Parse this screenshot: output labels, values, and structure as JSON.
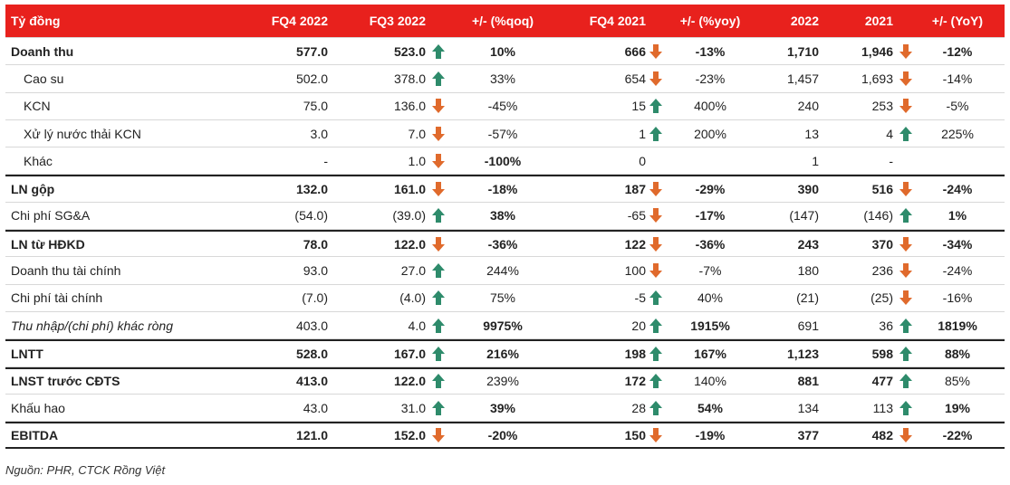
{
  "colors": {
    "header_bg": "#e8211d",
    "up": "#2e8b6b",
    "down": "#e06a2c"
  },
  "header": {
    "label": "Tỷ đồng",
    "fq4_2022": "FQ4 2022",
    "fq3_2022": "FQ3 2022",
    "qoq": "+/- (%qoq)",
    "fq4_2021": "FQ4 2021",
    "yoy": "+/- (%yoy)",
    "y2022": "2022",
    "y2021": "2021",
    "yoy_annual": "+/- (YoY)"
  },
  "rows": [
    {
      "label": "Doanh thu",
      "fq4_2022": "577.0",
      "fq3_2022": "523.0",
      "qoq_icon": "arrow-up-icon",
      "qoq": "10%",
      "fq4_2021": "666",
      "yoy_icon": "arrow-down-icon",
      "yoy": "-13%",
      "y2022": "1,710",
      "y2021": "1,946",
      "annual_icon": "arrow-down-icon",
      "yoy_annual": "-12%"
    },
    {
      "label": "Cao su",
      "fq4_2022": "502.0",
      "fq3_2022": "378.0",
      "qoq_icon": "arrow-up-icon",
      "qoq": "33%",
      "fq4_2021": "654",
      "yoy_icon": "arrow-down-icon",
      "yoy": "-23%",
      "y2022": "1,457",
      "y2021": "1,693",
      "annual_icon": "arrow-down-icon",
      "yoy_annual": "-14%"
    },
    {
      "label": "KCN",
      "fq4_2022": "75.0",
      "fq3_2022": "136.0",
      "qoq_icon": "arrow-down-icon",
      "qoq": "-45%",
      "fq4_2021": "15",
      "yoy_icon": "arrow-up-icon",
      "yoy": "400%",
      "y2022": "240",
      "y2021": "253",
      "annual_icon": "arrow-down-icon",
      "yoy_annual": "-5%"
    },
    {
      "label": "Xử lý nước thải KCN",
      "fq4_2022": "3.0",
      "fq3_2022": "7.0",
      "qoq_icon": "arrow-down-icon",
      "qoq": "-57%",
      "fq4_2021": "1",
      "yoy_icon": "arrow-up-icon",
      "yoy": "200%",
      "y2022": "13",
      "y2021": "4",
      "annual_icon": "arrow-up-icon",
      "yoy_annual": "225%"
    },
    {
      "label": "Khác",
      "fq4_2022": "-",
      "fq3_2022": "1.0",
      "qoq_icon": "arrow-down-icon",
      "qoq": "-100%",
      "fq4_2021": "0",
      "yoy_icon": "",
      "yoy": "",
      "y2022": "1",
      "y2021": "-",
      "annual_icon": "",
      "yoy_annual": ""
    },
    {
      "label": "LN gộp",
      "fq4_2022": "132.0",
      "fq3_2022": "161.0",
      "qoq_icon": "arrow-down-icon",
      "qoq": "-18%",
      "fq4_2021": "187",
      "yoy_icon": "arrow-down-icon",
      "yoy": "-29%",
      "y2022": "390",
      "y2021": "516",
      "annual_icon": "arrow-down-icon",
      "yoy_annual": "-24%"
    },
    {
      "label": "Chi phí SG&A",
      "fq4_2022": "(54.0)",
      "fq3_2022": "(39.0)",
      "qoq_icon": "arrow-up-icon",
      "qoq": "38%",
      "fq4_2021": "-65",
      "yoy_icon": "arrow-down-icon",
      "yoy": "-17%",
      "y2022": "(147)",
      "y2021": "(146)",
      "annual_icon": "arrow-up-icon",
      "yoy_annual": "1%"
    },
    {
      "label": "LN từ HĐKD",
      "fq4_2022": "78.0",
      "fq3_2022": "122.0",
      "qoq_icon": "arrow-down-icon",
      "qoq": "-36%",
      "fq4_2021": "122",
      "yoy_icon": "arrow-down-icon",
      "yoy": "-36%",
      "y2022": "243",
      "y2021": "370",
      "annual_icon": "arrow-down-icon",
      "yoy_annual": "-34%"
    },
    {
      "label": "Doanh thu tài chính",
      "fq4_2022": "93.0",
      "fq3_2022": "27.0",
      "qoq_icon": "arrow-up-icon",
      "qoq": "244%",
      "fq4_2021": "100",
      "yoy_icon": "arrow-down-icon",
      "yoy": "-7%",
      "y2022": "180",
      "y2021": "236",
      "annual_icon": "arrow-down-icon",
      "yoy_annual": "-24%"
    },
    {
      "label": "Chi phí tài chính",
      "fq4_2022": "(7.0)",
      "fq3_2022": "(4.0)",
      "qoq_icon": "arrow-up-icon",
      "qoq": "75%",
      "fq4_2021": "-5",
      "yoy_icon": "arrow-up-icon",
      "yoy": "40%",
      "y2022": "(21)",
      "y2021": "(25)",
      "annual_icon": "arrow-down-icon",
      "yoy_annual": "-16%"
    },
    {
      "label": "Thu nhập/(chi phí) khác ròng",
      "fq4_2022": "403.0",
      "fq3_2022": "4.0",
      "qoq_icon": "arrow-up-icon",
      "qoq": "9975%",
      "fq4_2021": "20",
      "yoy_icon": "arrow-up-icon",
      "yoy": "1915%",
      "y2022": "691",
      "y2021": "36",
      "annual_icon": "arrow-up-icon",
      "yoy_annual": "1819%"
    },
    {
      "label": "LNTT",
      "fq4_2022": "528.0",
      "fq3_2022": "167.0",
      "qoq_icon": "arrow-up-icon",
      "qoq": "216%",
      "fq4_2021": "198",
      "yoy_icon": "arrow-up-icon",
      "yoy": "167%",
      "y2022": "1,123",
      "y2021": "598",
      "annual_icon": "arrow-up-icon",
      "yoy_annual": "88%"
    },
    {
      "label": "LNST trước CĐTS",
      "fq4_2022": "413.0",
      "fq3_2022": "122.0",
      "qoq_icon": "arrow-up-icon",
      "qoq": "239%",
      "fq4_2021": "172",
      "yoy_icon": "arrow-up-icon",
      "yoy": "140%",
      "y2022": "881",
      "y2021": "477",
      "annual_icon": "arrow-up-icon",
      "yoy_annual": "85%"
    },
    {
      "label": "Khấu hao",
      "fq4_2022": "43.0",
      "fq3_2022": "31.0",
      "qoq_icon": "arrow-up-icon",
      "qoq": "39%",
      "fq4_2021": "28",
      "yoy_icon": "arrow-up-icon",
      "yoy": "54%",
      "y2022": "134",
      "y2021": "113",
      "annual_icon": "arrow-up-icon",
      "yoy_annual": "19%"
    },
    {
      "label": "EBITDA",
      "fq4_2022": "121.0",
      "fq3_2022": "152.0",
      "qoq_icon": "arrow-down-icon",
      "qoq": "-20%",
      "fq4_2021": "150",
      "yoy_icon": "arrow-down-icon",
      "yoy": "-19%",
      "y2022": "377",
      "y2021": "482",
      "annual_icon": "arrow-down-icon",
      "yoy_annual": "-22%"
    }
  ],
  "source": "Nguồn: PHR, CTCK Rồng Việt"
}
